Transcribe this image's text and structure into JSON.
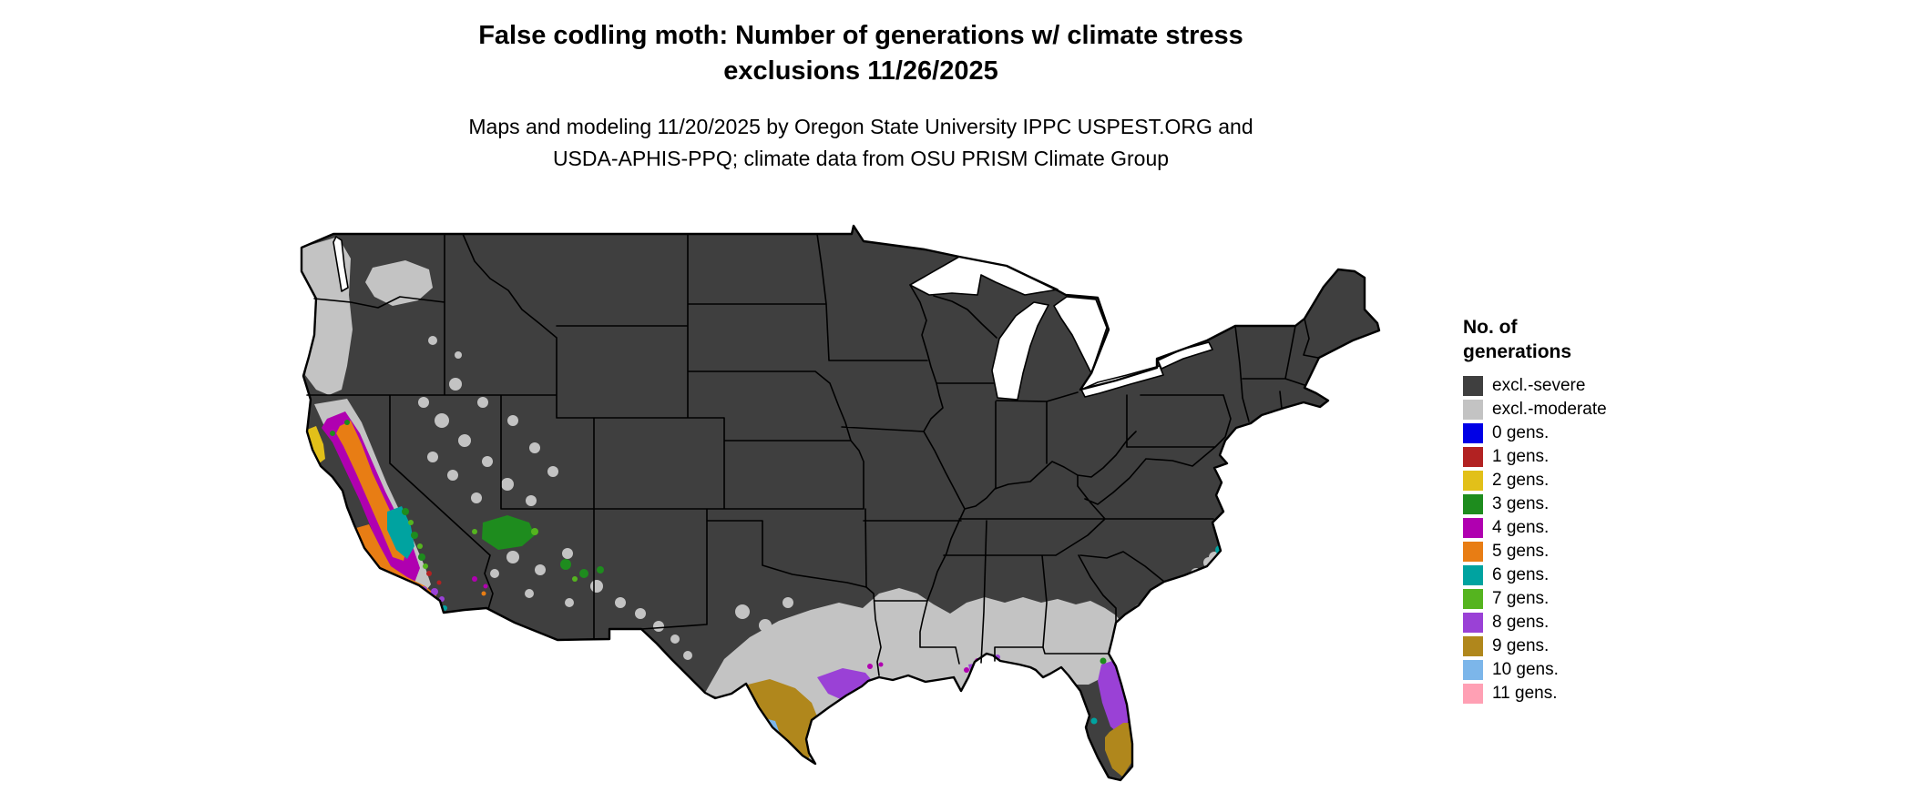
{
  "title": {
    "line1": "False codling moth: Number of generations w/ climate stress",
    "line2": "exclusions 11/26/2025"
  },
  "subtitle": {
    "line1": "Maps and modeling 11/20/2025 by Oregon State University IPPC USPEST.ORG and",
    "line2": "USDA-APHIS-PPQ; climate data from OSU PRISM Climate Group"
  },
  "legend": {
    "title_line1": "No. of",
    "title_line2": "generations",
    "items": [
      {
        "key": "sev",
        "label": "excl.-severe",
        "color": "#3f3f3f"
      },
      {
        "key": "mod",
        "label": "excl.-moderate",
        "color": "#c3c3c3"
      },
      {
        "key": "g0",
        "label": "0 gens.",
        "color": "#0000e6"
      },
      {
        "key": "g1",
        "label": "1 gens.",
        "color": "#b22222"
      },
      {
        "key": "g2",
        "label": "2 gens.",
        "color": "#e2c019"
      },
      {
        "key": "g3",
        "label": "3 gens.",
        "color": "#1e8c1e"
      },
      {
        "key": "g4",
        "label": "4 gens.",
        "color": "#b000b0"
      },
      {
        "key": "g5",
        "label": "5 gens.",
        "color": "#e87d14"
      },
      {
        "key": "g6",
        "label": "6 gens.",
        "color": "#00a3a0"
      },
      {
        "key": "g7",
        "label": "7 gens.",
        "color": "#55b41f"
      },
      {
        "key": "g8",
        "label": "8 gens.",
        "color": "#9a41d6"
      },
      {
        "key": "g9",
        "label": "9 gens.",
        "color": "#b0871c"
      },
      {
        "key": "g10",
        "label": "10 gens.",
        "color": "#7cb6ea"
      },
      {
        "key": "g11",
        "label": "11 gens.",
        "color": "#ffa0b4"
      }
    ]
  }
}
